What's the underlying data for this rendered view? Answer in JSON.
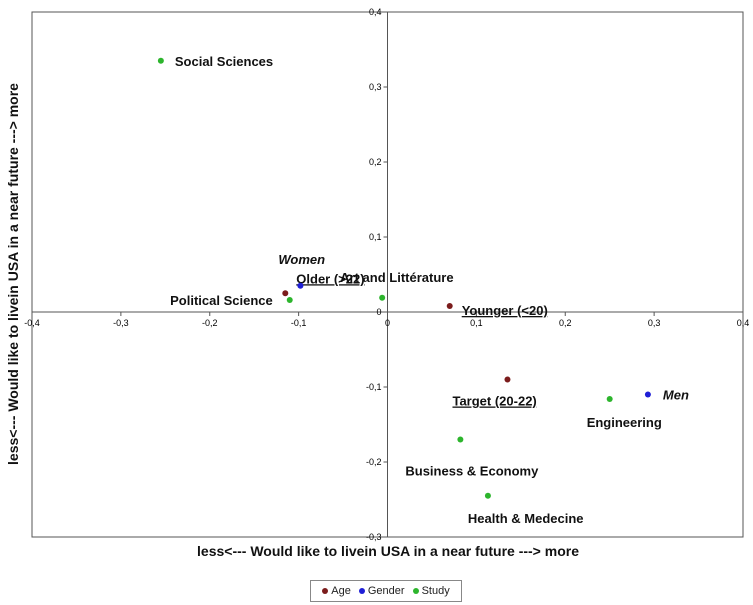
{
  "chart_data": {
    "type": "scatter",
    "xlabel": "less<--- Would like to livein USA in a near future ---> more",
    "ylabel": "less<--- Would like to livein USA in a near future ---> more",
    "xlim": [
      -0.4,
      0.4
    ],
    "ylim": [
      -0.3,
      0.4
    ],
    "x_ticks": [
      -0.4,
      -0.3,
      -0.2,
      -0.1,
      0,
      0.1,
      0.2,
      0.3,
      0.4
    ],
    "y_ticks": [
      -0.3,
      -0.2,
      -0.1,
      0,
      0.1,
      0.2,
      0.3,
      0.4
    ],
    "x_tick_labels": [
      "-0,4",
      "-0,3",
      "-0,2",
      "-0,1",
      "0",
      "0,1",
      "0,2",
      "0,3",
      "0,4"
    ],
    "y_tick_labels": [
      "-0,3",
      "-0,2",
      "-0,1",
      "0",
      "0,1",
      "0,2",
      "0,3",
      "0,4"
    ],
    "grid": false,
    "legend_position": "bottom",
    "series": [
      {
        "name": "Age",
        "color": "#7b1c1c",
        "points": [
          {
            "x": -0.115,
            "y": 0.025,
            "label": "Older (>22)",
            "underline": true
          },
          {
            "x": 0.07,
            "y": 0.008,
            "label": "Younger (<20)",
            "underline": true
          },
          {
            "x": 0.135,
            "y": -0.09,
            "label": "Target (20-22)",
            "underline": true
          }
        ]
      },
      {
        "name": "Gender",
        "color": "#1f1fd6",
        "points": [
          {
            "x": -0.098,
            "y": 0.035,
            "label": "Women",
            "italic": true
          },
          {
            "x": 0.293,
            "y": -0.11,
            "label": "Men",
            "italic": true
          }
        ]
      },
      {
        "name": "Study",
        "color": "#2db52d",
        "points": [
          {
            "x": -0.255,
            "y": 0.335,
            "label": "Social Sciences"
          },
          {
            "x": -0.11,
            "y": 0.016,
            "label": "Political Science"
          },
          {
            "x": -0.006,
            "y": 0.019,
            "label": "Art and Littérature"
          },
          {
            "x": 0.25,
            "y": -0.116,
            "label": "Engineering"
          },
          {
            "x": 0.082,
            "y": -0.17,
            "label": "Business & Economy"
          },
          {
            "x": 0.113,
            "y": -0.245,
            "label": "Health & Medecine"
          }
        ]
      }
    ]
  }
}
